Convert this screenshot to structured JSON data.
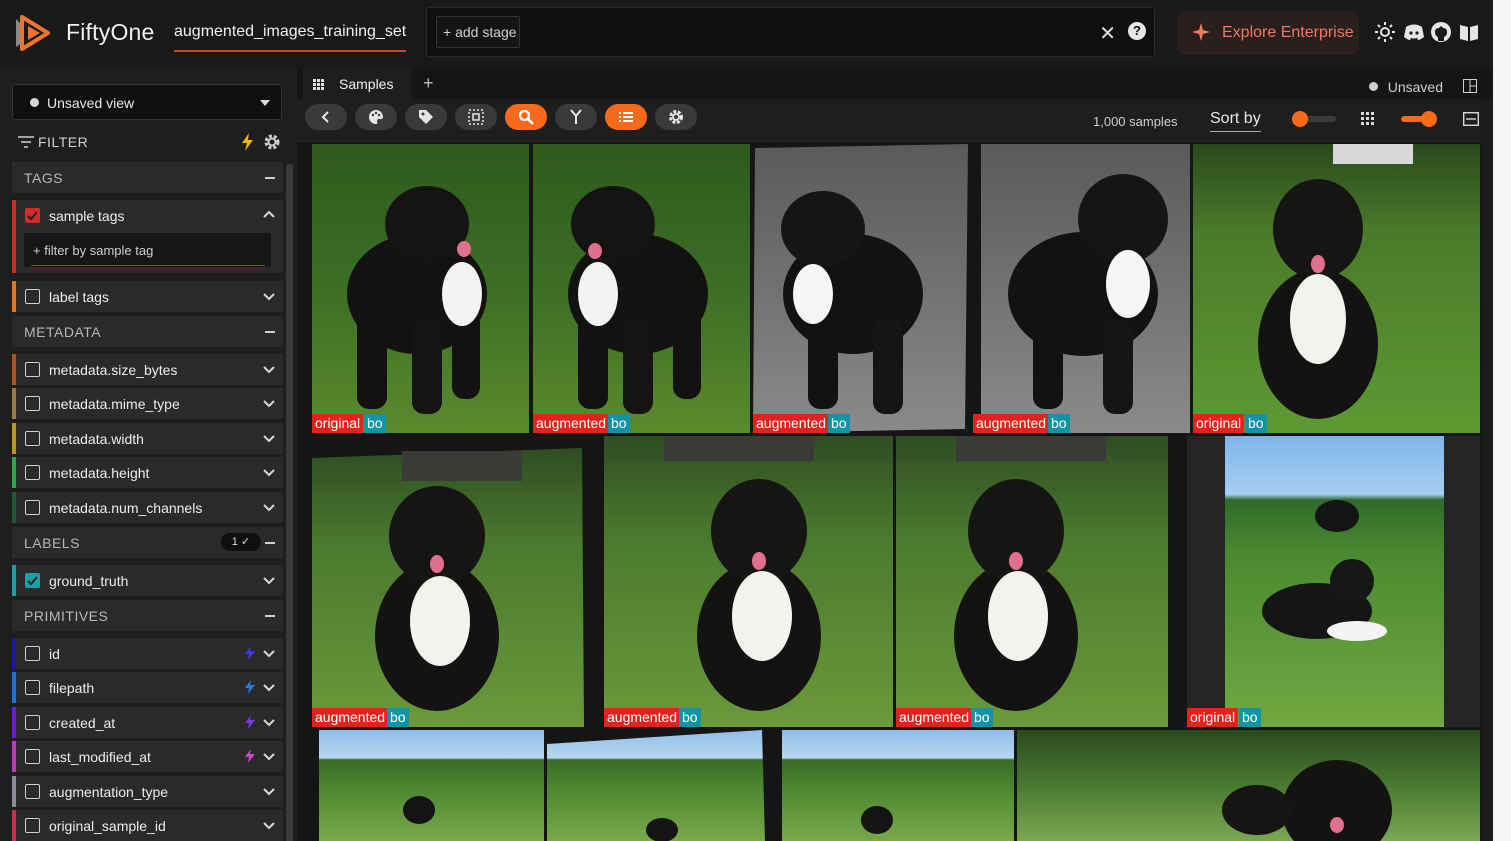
{
  "header": {
    "brand": "FiftyOne",
    "dataset_name": "augmented_images_training_set",
    "add_stage_label": "+ add stage",
    "explore_label": "Explore Enterprise",
    "icons": [
      "brightness-icon",
      "discord-icon",
      "github-icon",
      "docs-icon"
    ]
  },
  "sidebar": {
    "view_select": "Unsaved view",
    "filter_label": "FILTER",
    "tags_section": "TAGS",
    "sample_tags": "sample tags",
    "tag_filter_placeholder": "+ filter by sample tag",
    "label_tags": "label tags",
    "metadata_section": "METADATA",
    "metadata_fields": [
      "metadata.size_bytes",
      "metadata.mime_type",
      "metadata.width",
      "metadata.height",
      "metadata.num_channels"
    ],
    "labels_section": "LABELS",
    "labels_badge": "1 ✓",
    "labels_fields": [
      "ground_truth"
    ],
    "primitives_section": "PRIMITIVES",
    "primitive_fields": [
      "id",
      "filepath",
      "created_at",
      "last_modified_at",
      "augmentation_type",
      "original_sample_id"
    ]
  },
  "main": {
    "tab_label": "Samples",
    "unsaved_label": "Unsaved",
    "sample_count": "1,000 samples",
    "sort_label": "Sort by"
  },
  "grid": {
    "labels": [
      "original",
      "augmented",
      "augmented",
      "augmented",
      "original",
      "augmented",
      "augmented",
      "augmented",
      "original"
    ],
    "class_label": "bo"
  },
  "colors": {
    "accent": "#f76a1c",
    "tag_red": "#e2221c",
    "class_teal": "#1294a6"
  }
}
